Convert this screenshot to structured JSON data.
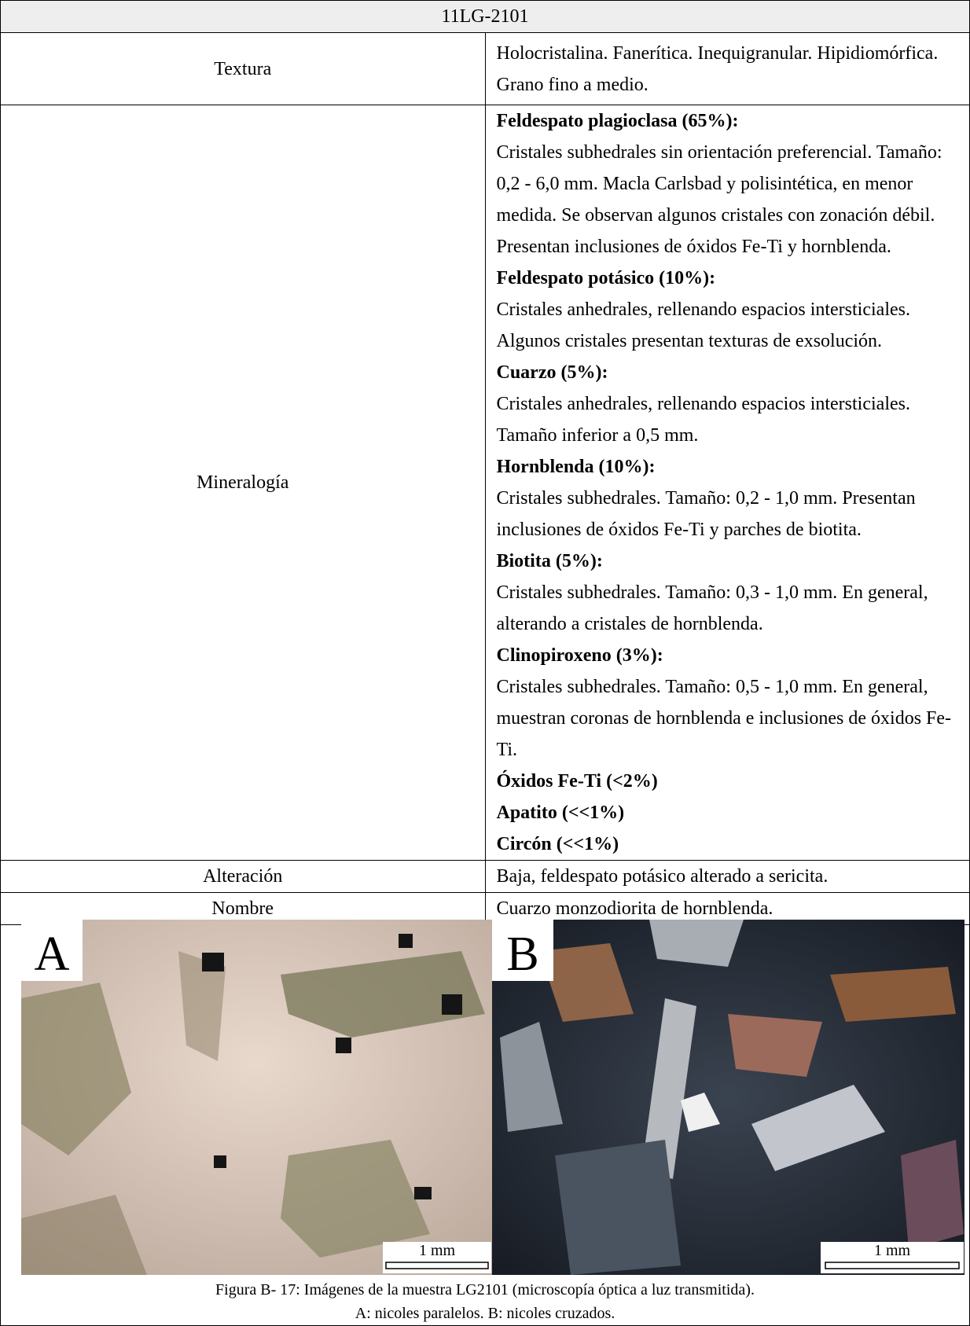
{
  "table": {
    "title": "11LG-2101",
    "rows": [
      {
        "label": "Textura",
        "text": "Holocristalina. Fanerítica. Inequigranular. Hipidiomórfica. Grano fino a medio."
      },
      {
        "label": "Mineralogía",
        "minerals": [
          {
            "name": "Feldespato plagioclasa (65%):",
            "description": "Cristales subhedrales sin orientación preferencial. Tamaño: 0,2 - 6,0 mm. Macla Carlsbad y polisintética, en menor medida. Se observan algunos cristales con zonación débil. Presentan inclusiones de óxidos Fe-Ti y hornblenda."
          },
          {
            "name": "Feldespato potásico (10%):",
            "description": "Cristales anhedrales, rellenando espacios intersticiales. Algunos cristales presentan texturas de exsolución."
          },
          {
            "name": "Cuarzo (5%):",
            "description": "Cristales anhedrales, rellenando espacios intersticiales. Tamaño inferior a 0,5 mm."
          },
          {
            "name": "Hornblenda (10%):",
            "description": "Cristales subhedrales. Tamaño: 0,2 - 1,0 mm. Presentan inclusiones de óxidos Fe-Ti y parches de biotita."
          },
          {
            "name": "Biotita (5%):",
            "description": "Cristales subhedrales. Tamaño: 0,3 - 1,0 mm. En general, alterando a cristales de hornblenda."
          },
          {
            "name": "Clinopiroxeno (3%):",
            "description": "Cristales subhedrales. Tamaño: 0,5 - 1,0 mm. En general, muestran coronas de hornblenda e inclusiones de óxidos Fe-Ti."
          },
          {
            "name": "Óxidos Fe-Ti (<2%)"
          },
          {
            "name": "Apatito (<<1%)"
          },
          {
            "name": "Circón (<<1%)"
          }
        ]
      },
      {
        "label": "Alteración",
        "text": "Baja, feldespato potásico alterado a sericita."
      },
      {
        "label": "Nombre",
        "text": "Cuarzo monzodiorita de hornblenda."
      }
    ]
  },
  "figure": {
    "panels": [
      {
        "label": "A",
        "scale_bar": "1 mm"
      },
      {
        "label": "B",
        "scale_bar": "1 mm"
      }
    ],
    "caption": [
      "Figura B- 17: Imágenes de la muestra LG2101 (microscopía óptica a luz transmitida).",
      "A: nicoles paralelos. B: nicoles cruzados."
    ]
  }
}
